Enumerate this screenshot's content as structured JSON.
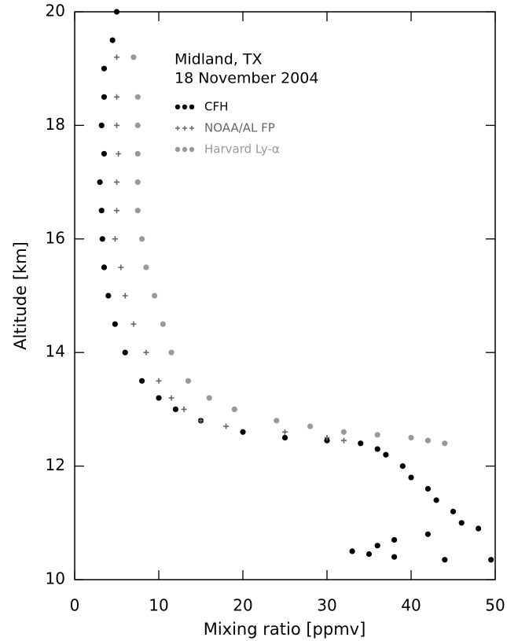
{
  "chart_data": {
    "type": "scatter",
    "annotations": [
      "Midland, TX",
      "18 November 2004"
    ],
    "xlabel": "Mixing ratio [ppmv]",
    "ylabel": "Altitude [km]",
    "xlim": [
      0,
      50
    ],
    "xticks": [
      0,
      10,
      20,
      30,
      40,
      50
    ],
    "ylim": [
      10,
      20
    ],
    "yticks": [
      10,
      12,
      14,
      16,
      18,
      20
    ],
    "series": [
      {
        "name": "CFH",
        "color": "#000000",
        "marker": "circle",
        "x": [
          5,
          4.5,
          3.5,
          3.5,
          3.2,
          3.5,
          3,
          3.2,
          3.3,
          3.5,
          4,
          4.8,
          6,
          8,
          10,
          12,
          15,
          20,
          25,
          30,
          34,
          36,
          37,
          39,
          40,
          42,
          43,
          45,
          46,
          48,
          42,
          38,
          36,
          33,
          35,
          38,
          44,
          49.5
        ],
        "values": [
          20,
          19.5,
          19,
          18.5,
          18,
          17.5,
          17,
          16.5,
          16,
          15.5,
          15,
          14.5,
          14,
          13.5,
          13.2,
          13,
          12.8,
          12.6,
          12.5,
          12.45,
          12.4,
          12.3,
          12.2,
          12,
          11.8,
          11.6,
          11.4,
          11.2,
          11,
          10.9,
          10.8,
          10.7,
          10.6,
          10.5,
          10.45,
          10.4,
          10.35,
          10.35
        ]
      },
      {
        "name": "NOAA/AL FP",
        "color": "#666666",
        "marker": "plus",
        "x": [
          5,
          5,
          5,
          5.2,
          5,
          5,
          4.8,
          5.5,
          6,
          7,
          8.5,
          10,
          11.5,
          13,
          15,
          18,
          25,
          30,
          32
        ],
        "values": [
          19.2,
          18.5,
          18,
          17.5,
          17,
          16.5,
          16,
          15.5,
          15,
          14.5,
          14,
          13.5,
          13.2,
          13,
          12.8,
          12.7,
          12.6,
          12.5,
          12.45
        ]
      },
      {
        "name": "Harvard Ly-α",
        "color": "#999999",
        "marker": "circle",
        "x": [
          7,
          7.5,
          7.5,
          7.5,
          7.5,
          7.5,
          8,
          8.5,
          9.5,
          10.5,
          11.5,
          13.5,
          16,
          19,
          24,
          28,
          32,
          36,
          40,
          42,
          44
        ],
        "values": [
          19.2,
          18.5,
          18,
          17.5,
          17,
          16.5,
          16,
          15.5,
          15,
          14.5,
          14,
          13.5,
          13.2,
          13,
          12.8,
          12.7,
          12.6,
          12.55,
          12.5,
          12.45,
          12.4
        ]
      }
    ]
  }
}
